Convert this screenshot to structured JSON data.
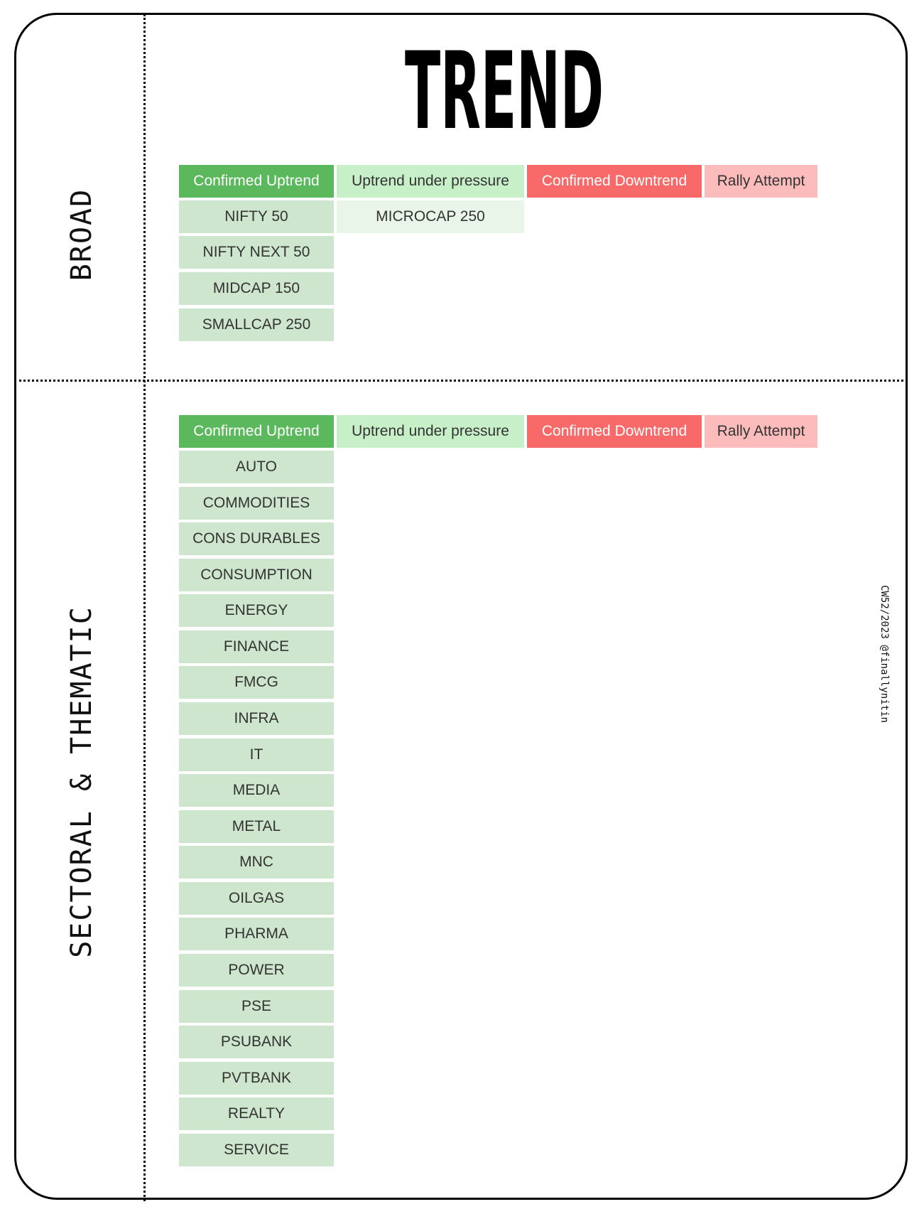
{
  "title": "TREND",
  "watermark": "CW52/2023 @finallynitin",
  "headers": [
    "Confirmed Uptrend",
    "Uptrend under pressure",
    "Confirmed Downtrend",
    "Rally Attempt"
  ],
  "broad": {
    "label": "BROAD",
    "confirmed_uptrend": [
      "NIFTY 50",
      "NIFTY NEXT 50",
      "MIDCAP 150",
      "SMALLCAP 250"
    ],
    "uptrend_under_pressure": [
      "MICROCAP 250"
    ],
    "confirmed_downtrend": [],
    "rally_attempt": []
  },
  "sectoral": {
    "label": "SECTORAL & THEMATIC",
    "confirmed_uptrend": [
      "AUTO",
      "COMMODITIES",
      "CONS DURABLES",
      "CONSUMPTION",
      "ENERGY",
      "FINANCE",
      "FMCG",
      "INFRA",
      "IT",
      "MEDIA",
      "METAL",
      "MNC",
      "OILGAS",
      "PHARMA",
      "POWER",
      "PSE",
      "PSUBANK",
      "PVTBANK",
      "REALTY",
      "SERVICE"
    ],
    "uptrend_under_pressure": [],
    "confirmed_downtrend": [],
    "rally_attempt": []
  },
  "colors": {
    "confirmed_uptrend": "#5cb85c",
    "uptrend_under_pressure": "#c8f0c8",
    "confirmed_downtrend": "#f86a6a",
    "rally_attempt": "#fcbcbc",
    "uptrend_item": "#cde6cd",
    "pressure_item": "#eaf5ea"
  }
}
